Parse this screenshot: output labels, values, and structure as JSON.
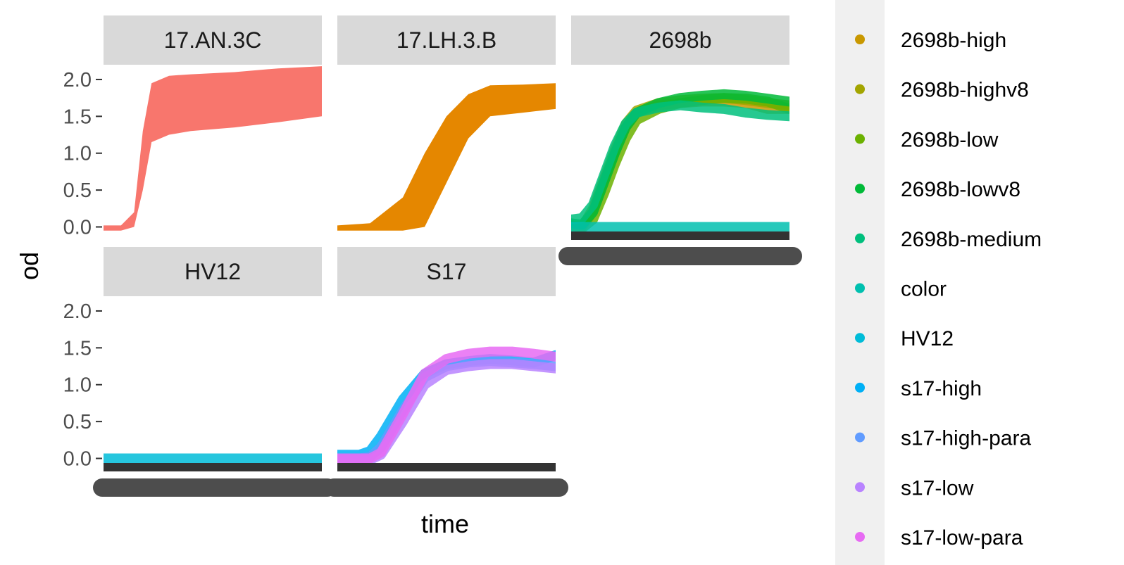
{
  "chart_data": {
    "type": "line",
    "xlabel": "time",
    "ylabel": "od",
    "ylim": [
      -0.1,
      2.2
    ],
    "yticks": [
      "0.0",
      "0.5",
      "1.0",
      "1.5",
      "2.0"
    ],
    "x_tick_labels_note": "overplotted",
    "facets": [
      {
        "label": "17.AN.3C",
        "series": [
          {
            "name": "",
            "color": "#F8766D",
            "x": [
              0,
              0.08,
              0.14,
              0.18,
              0.22,
              0.26,
              0.3,
              0.4,
              0.6,
              0.8,
              1.0
            ],
            "y_low": [
              -0.05,
              -0.05,
              0.0,
              0.5,
              1.15,
              1.2,
              1.25,
              1.3,
              1.35,
              1.42,
              1.5
            ],
            "y_high": [
              0.02,
              0.02,
              0.2,
              1.3,
              1.95,
              2.0,
              2.05,
              2.07,
              2.1,
              2.15,
              2.18
            ]
          }
        ]
      },
      {
        "label": "17.LH.3.B",
        "series": [
          {
            "name": "",
            "color": "#E58700",
            "x": [
              0,
              0.15,
              0.3,
              0.4,
              0.5,
              0.6,
              0.7,
              0.85,
              1.0
            ],
            "y_low": [
              -0.05,
              -0.05,
              -0.05,
              0.0,
              0.6,
              1.2,
              1.5,
              1.55,
              1.6
            ],
            "y_high": [
              0.02,
              0.05,
              0.4,
              1.0,
              1.5,
              1.8,
              1.92,
              1.93,
              1.95
            ]
          }
        ]
      },
      {
        "label": "2698b",
        "series": [
          {
            "name": "2698b-high",
            "color": "#C99800",
            "x": [
              0,
              0.05,
              0.1,
              0.15,
              0.2,
              0.25,
              0.3,
              0.4,
              0.5,
              0.6,
              0.7,
              0.8,
              0.9,
              1.0
            ],
            "y": [
              0.02,
              0.0,
              0.2,
              0.6,
              1.0,
              1.35,
              1.55,
              1.65,
              1.68,
              1.7,
              1.7,
              1.68,
              1.6,
              1.6
            ]
          },
          {
            "name": "2698b-highv8",
            "color": "#A3A500",
            "x": [
              0,
              0.05,
              0.1,
              0.15,
              0.2,
              0.25,
              0.3,
              0.4,
              0.5,
              0.6,
              0.7,
              0.8,
              0.9,
              1.0
            ],
            "y": [
              0.02,
              0.0,
              0.25,
              0.65,
              1.05,
              1.4,
              1.58,
              1.68,
              1.72,
              1.74,
              1.75,
              1.72,
              1.68,
              1.65
            ]
          },
          {
            "name": "2698b-low",
            "color": "#6BB100",
            "x": [
              0,
              0.05,
              0.1,
              0.15,
              0.2,
              0.25,
              0.3,
              0.4,
              0.5,
              0.6,
              0.7,
              0.8,
              0.9,
              1.0
            ],
            "y": [
              0.0,
              -0.02,
              0.1,
              0.45,
              0.85,
              1.2,
              1.45,
              1.6,
              1.68,
              1.72,
              1.75,
              1.74,
              1.7,
              1.6
            ]
          },
          {
            "name": "2698b-lowv8",
            "color": "#00BA38",
            "x": [
              0,
              0.05,
              0.1,
              0.15,
              0.2,
              0.25,
              0.3,
              0.4,
              0.5,
              0.6,
              0.7,
              0.8,
              0.9,
              1.0
            ],
            "y": [
              0.05,
              0.03,
              0.2,
              0.6,
              1.0,
              1.35,
              1.55,
              1.68,
              1.75,
              1.78,
              1.8,
              1.78,
              1.74,
              1.7
            ]
          },
          {
            "name": "2698b-medium",
            "color": "#00BF7D",
            "x": [
              0,
              0.05,
              0.1,
              0.15,
              0.2,
              0.25,
              0.3,
              0.4,
              0.5,
              0.6,
              0.7,
              0.8,
              0.9,
              1.0
            ],
            "y": [
              0.1,
              0.12,
              0.3,
              0.7,
              1.1,
              1.4,
              1.55,
              1.62,
              1.65,
              1.62,
              1.6,
              1.55,
              1.52,
              1.5
            ]
          },
          {
            "name": "color",
            "color": "#00C0AF",
            "x": [
              0,
              0.1,
              0.2,
              0.4,
              0.6,
              0.8,
              1.0
            ],
            "y": [
              0.0,
              0.0,
              0.0,
              0.0,
              0.0,
              0.0,
              0.0
            ]
          }
        ]
      },
      {
        "label": "HV12",
        "series": [
          {
            "name": "HV12",
            "color": "#00BCD8",
            "x": [
              0,
              0.2,
              0.4,
              0.6,
              0.8,
              1.0
            ],
            "y": [
              0.0,
              0.0,
              0.0,
              0.0,
              0.0,
              0.0
            ]
          }
        ]
      },
      {
        "label": "S17",
        "series": [
          {
            "name": "s17-high",
            "color": "#00B0F6",
            "x": [
              0,
              0.1,
              0.15,
              0.2,
              0.3,
              0.4,
              0.5,
              0.6,
              0.7,
              0.8,
              0.9,
              1.0
            ],
            "y": [
              0.05,
              0.05,
              0.1,
              0.3,
              0.8,
              1.15,
              1.28,
              1.32,
              1.35,
              1.33,
              1.3,
              1.4
            ]
          },
          {
            "name": "s17-high-para",
            "color": "#619CFF",
            "x": [
              0,
              0.1,
              0.15,
              0.2,
              0.3,
              0.4,
              0.5,
              0.6,
              0.7,
              0.8,
              0.9,
              1.0
            ],
            "y": [
              0.0,
              0.0,
              0.02,
              0.15,
              0.65,
              1.1,
              1.25,
              1.3,
              1.32,
              1.3,
              1.28,
              1.25
            ]
          },
          {
            "name": "s17-low",
            "color": "#B983FF",
            "x": [
              0,
              0.1,
              0.15,
              0.2,
              0.3,
              0.4,
              0.5,
              0.6,
              0.7,
              0.8,
              0.9,
              1.0
            ],
            "y": [
              -0.02,
              -0.02,
              -0.02,
              0.05,
              0.5,
              1.0,
              1.2,
              1.25,
              1.28,
              1.28,
              1.25,
              1.22
            ]
          },
          {
            "name": "s17-low-para",
            "color": "#E76BF3",
            "x": [
              0,
              0.1,
              0.15,
              0.2,
              0.3,
              0.4,
              0.5,
              0.6,
              0.7,
              0.8,
              0.9,
              1.0
            ],
            "y": [
              0.0,
              0.0,
              0.0,
              0.08,
              0.6,
              1.15,
              1.35,
              1.42,
              1.45,
              1.45,
              1.42,
              1.38
            ]
          }
        ]
      }
    ],
    "legend": {
      "placement": "right",
      "entries": [
        {
          "name": "2698b-high",
          "color": "#C99800"
        },
        {
          "name": "2698b-highv8",
          "color": "#A3A500"
        },
        {
          "name": "2698b-low",
          "color": "#6BB100"
        },
        {
          "name": "2698b-lowv8",
          "color": "#00BA38"
        },
        {
          "name": "2698b-medium",
          "color": "#00BF7D"
        },
        {
          "name": "color",
          "color": "#00C0AF"
        },
        {
          "name": "HV12",
          "color": "#00BCD8"
        },
        {
          "name": "s17-high",
          "color": "#00B0F6"
        },
        {
          "name": "s17-high-para",
          "color": "#619CFF"
        },
        {
          "name": "s17-low",
          "color": "#B983FF"
        },
        {
          "name": "s17-low-para",
          "color": "#E76BF3"
        }
      ]
    }
  }
}
